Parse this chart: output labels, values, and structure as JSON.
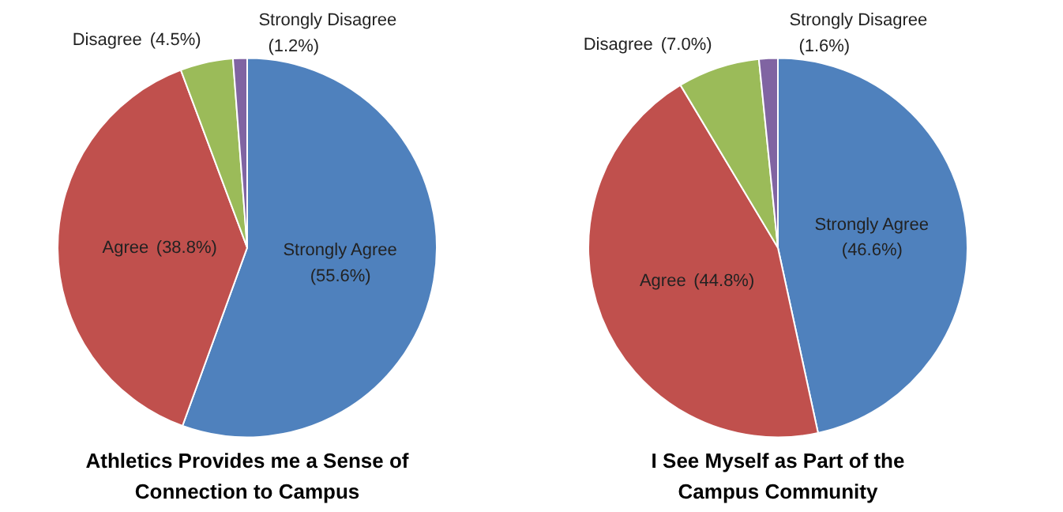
{
  "chart_data": [
    {
      "type": "pie",
      "title": "Athletics Provides me a Sense of Connection to Campus",
      "categories": [
        "Strongly Agree",
        "Agree",
        "Disagree",
        "Strongly Disagree"
      ],
      "values": [
        55.6,
        38.8,
        4.5,
        1.2
      ],
      "colors": [
        "#4f81bd",
        "#c0504d",
        "#9bbb59",
        "#8064a2"
      ],
      "value_labels": [
        "(55.6%)",
        "(38.8%)",
        "(4.5%)",
        "(1.2%)"
      ]
    },
    {
      "type": "pie",
      "title": "I See Myself as Part of the Campus Community",
      "categories": [
        "Strongly Agree",
        "Agree",
        "Disagree",
        "Strongly Disagree"
      ],
      "values": [
        46.6,
        44.8,
        7.0,
        1.6
      ],
      "colors": [
        "#4f81bd",
        "#c0504d",
        "#9bbb59",
        "#8064a2"
      ],
      "value_labels": [
        "(46.6%)",
        "(44.8%)",
        "(7.0%)",
        "(1.6%)"
      ]
    }
  ]
}
